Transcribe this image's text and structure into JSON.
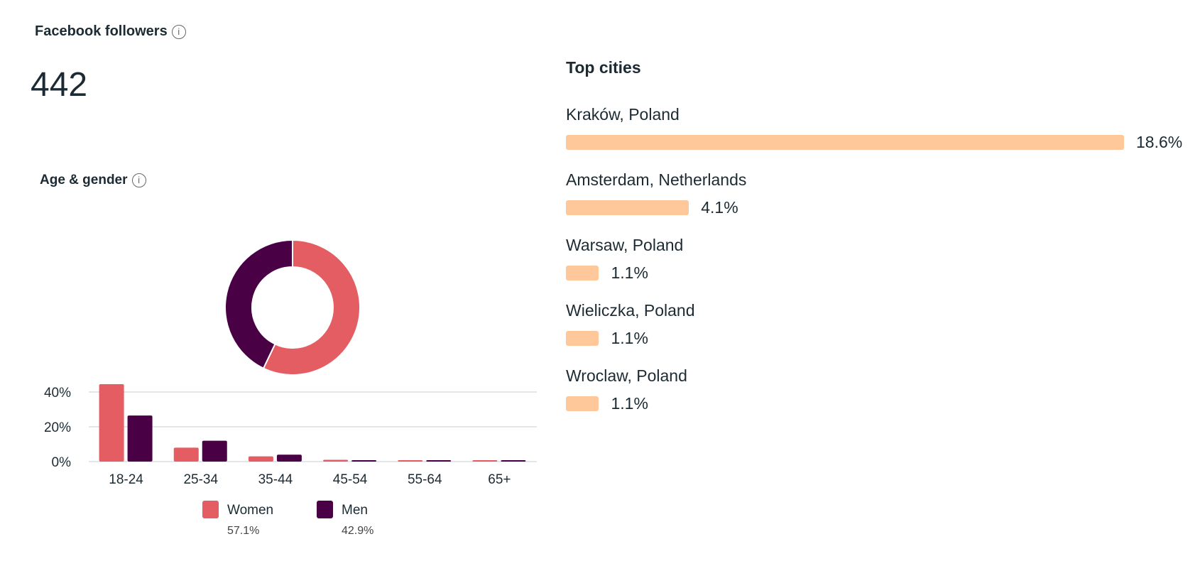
{
  "followers": {
    "title": "Facebook followers",
    "count": "442"
  },
  "age_gender": {
    "title": "Age & gender"
  },
  "colors": {
    "women": "#e35d62",
    "men": "#4a0045",
    "city_bar": "#ffc89a"
  },
  "chart_data": [
    {
      "type": "pie",
      "title": "Age & gender",
      "donut": true,
      "slices": [
        {
          "name": "Women",
          "value": 57.1,
          "label": "57.1%"
        },
        {
          "name": "Men",
          "value": 42.9,
          "label": "42.9%"
        }
      ]
    },
    {
      "type": "bar",
      "categories": [
        "18-24",
        "25-34",
        "35-44",
        "45-54",
        "55-64",
        "65+"
      ],
      "series": [
        {
          "name": "Women",
          "values": [
            44.5,
            8,
            3,
            1,
            0.5,
            0.5
          ]
        },
        {
          "name": "Men",
          "values": [
            26.5,
            12,
            4,
            0.5,
            0.5,
            0.5
          ]
        }
      ],
      "yticks": [
        "0%",
        "20%",
        "40%"
      ],
      "ytick_values": [
        0,
        20,
        40
      ],
      "ylim": [
        0,
        45
      ],
      "grid": true,
      "legend": "bottom"
    },
    {
      "type": "bar",
      "orientation": "horizontal",
      "title": "Top cities",
      "categories": [
        "Kraków, Poland",
        "Amsterdam, Netherlands",
        "Warsaw, Poland",
        "Wieliczka, Poland",
        "Wroclaw, Poland"
      ],
      "values": [
        18.6,
        4.1,
        1.1,
        1.1,
        1.1
      ],
      "labels": [
        "18.6%",
        "4.1%",
        "1.1%",
        "1.1%",
        "1.1%"
      ]
    }
  ]
}
